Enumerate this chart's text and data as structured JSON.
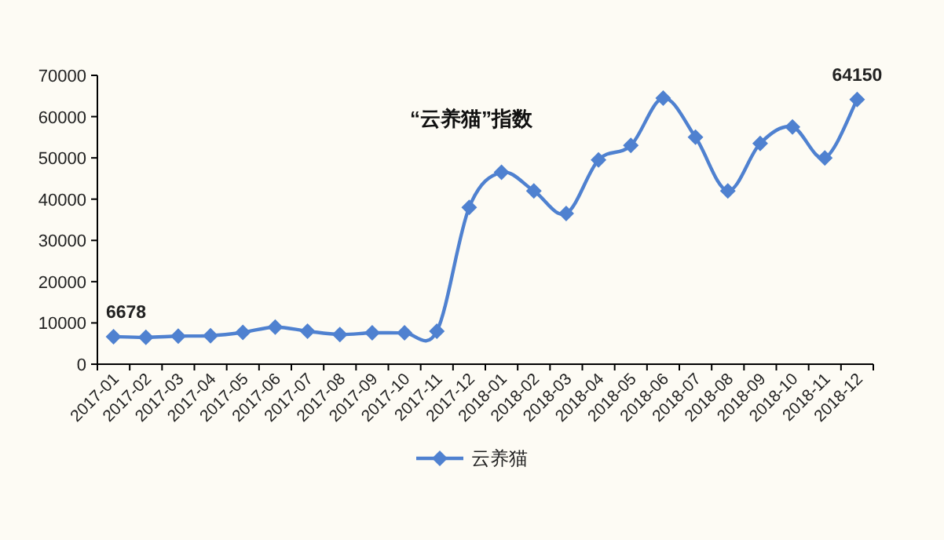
{
  "chart_data": {
    "type": "line",
    "title": "“云养猫”指数",
    "categories": [
      "2017-01",
      "2017-02",
      "2017-03",
      "2017-04",
      "2017-05",
      "2017-06",
      "2017-07",
      "2017-08",
      "2017-09",
      "2017-10",
      "2017-11",
      "2017-12",
      "2018-01",
      "2018-02",
      "2018-03",
      "2018-04",
      "2018-05",
      "2018-06",
      "2018-07",
      "2018-08",
      "2018-09",
      "2018-10",
      "2018-11",
      "2018-12"
    ],
    "series": [
      {
        "name": "云养猫",
        "color": "#4f81d0",
        "values": [
          6678,
          6500,
          6800,
          6900,
          7700,
          9000,
          8000,
          7200,
          7600,
          7600,
          8000,
          38000,
          46500,
          42000,
          36500,
          49500,
          53000,
          64500,
          55000,
          42000,
          53500,
          57500,
          50000,
          64150
        ],
        "value_labels": [
          "6678",
          null,
          null,
          null,
          null,
          null,
          null,
          null,
          null,
          null,
          null,
          null,
          null,
          null,
          null,
          null,
          null,
          null,
          null,
          null,
          null,
          null,
          null,
          "64150"
        ]
      }
    ],
    "ylim": [
      0,
      70000
    ],
    "yticks": [
      0,
      10000,
      20000,
      30000,
      40000,
      50000,
      60000,
      70000
    ],
    "marker": "diamond",
    "legend": "bottom",
    "grid": false
  }
}
